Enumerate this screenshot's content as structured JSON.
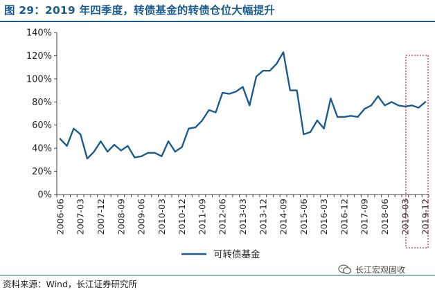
{
  "title": "图 29：2019 年四季度，转债基金的转债仓位大幅提升",
  "source": "资料来源：Wind，长江证券研究所",
  "watermark": "长江宏观固收",
  "colors": {
    "title": "#1a5c8e",
    "line": "#1a5c8e",
    "highlight_box": "#d6283a"
  },
  "chart_data": {
    "type": "line",
    "title": "",
    "xlabel": "",
    "ylabel": "",
    "ylim": [
      0,
      140
    ],
    "y_unit": "%",
    "y_ticks": [
      "0%",
      "20%",
      "40%",
      "60%",
      "80%",
      "100%",
      "120%",
      "140%"
    ],
    "grid": false,
    "legend": "bottom-center",
    "x_tick_labels": [
      "2006-06",
      "2007-03",
      "2007-12",
      "2008-09",
      "2009-06",
      "2010-03",
      "2010-12",
      "2011-09",
      "2012-06",
      "2013-03",
      "2013-12",
      "2014-09",
      "2015-06",
      "2016-03",
      "2016-12",
      "2017-09",
      "2018-06",
      "2019-03",
      "2019-12"
    ],
    "x": [
      "2006-06",
      "2006-09",
      "2006-12",
      "2007-03",
      "2007-06",
      "2007-09",
      "2007-12",
      "2008-03",
      "2008-06",
      "2008-09",
      "2008-12",
      "2009-03",
      "2009-06",
      "2009-09",
      "2009-12",
      "2010-03",
      "2010-06",
      "2010-09",
      "2010-12",
      "2011-03",
      "2011-06",
      "2011-09",
      "2011-12",
      "2012-03",
      "2012-06",
      "2012-09",
      "2012-12",
      "2013-03",
      "2013-06",
      "2013-09",
      "2013-12",
      "2014-03",
      "2014-06",
      "2014-09",
      "2014-12",
      "2015-03",
      "2015-06",
      "2015-09",
      "2015-12",
      "2016-03",
      "2016-06",
      "2016-09",
      "2016-12",
      "2017-03",
      "2017-06",
      "2017-09",
      "2017-12",
      "2018-03",
      "2018-06",
      "2018-09",
      "2018-12",
      "2019-03",
      "2019-06",
      "2019-09",
      "2019-12"
    ],
    "series": [
      {
        "name": "可转债基金",
        "values": [
          48,
          42,
          57,
          52,
          31,
          37,
          46,
          37,
          43,
          38,
          42,
          32,
          33,
          36,
          36,
          33,
          46,
          37,
          41,
          57,
          58,
          64,
          73,
          71,
          88,
          87,
          89,
          93,
          77,
          102,
          107,
          107,
          113,
          123,
          90,
          90,
          52,
          54,
          64,
          57,
          83,
          67,
          67,
          68,
          67,
          74,
          77,
          85,
          77,
          80,
          77,
          76,
          77,
          75,
          80
        ]
      }
    ],
    "highlight_range": [
      "2019-03",
      "2019-12"
    ]
  }
}
